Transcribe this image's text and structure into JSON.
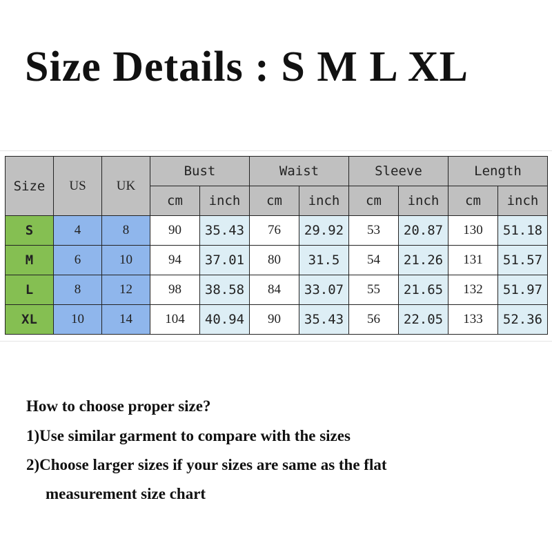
{
  "title": "Size Details : S M L XL",
  "table": {
    "headers": {
      "size": "Size",
      "us": "US",
      "uk": "UK",
      "groups": [
        "Bust",
        "Waist",
        "Sleeve",
        "Length"
      ],
      "units": [
        "cm",
        "inch"
      ]
    },
    "rows": [
      {
        "size": "S",
        "us": "4",
        "uk": "8",
        "values": [
          "90",
          "35.43",
          "76",
          "29.92",
          "53",
          "20.87",
          "130",
          "51.18"
        ]
      },
      {
        "size": "M",
        "us": "6",
        "uk": "10",
        "values": [
          "94",
          "37.01",
          "80",
          "31.5",
          "54",
          "21.26",
          "131",
          "51.57"
        ]
      },
      {
        "size": "L",
        "us": "8",
        "uk": "12",
        "values": [
          "98",
          "38.58",
          "84",
          "33.07",
          "55",
          "21.65",
          "132",
          "51.97"
        ]
      },
      {
        "size": "XL",
        "us": "10",
        "uk": "14",
        "values": [
          "104",
          "40.94",
          "90",
          "35.43",
          "56",
          "22.05",
          "133",
          "52.36"
        ]
      }
    ],
    "colors": {
      "header": "#c0c0c0",
      "size": "#85bf52",
      "us_uk": "#8fb6ec",
      "inch": "#ddeef5"
    }
  },
  "notes": {
    "heading": "How to choose proper size?",
    "tip1": "1)Use similar garment to compare with the sizes",
    "tip2_line1": "2)Choose larger sizes if your sizes are same as the flat",
    "tip2_line2": "measurement size chart"
  }
}
